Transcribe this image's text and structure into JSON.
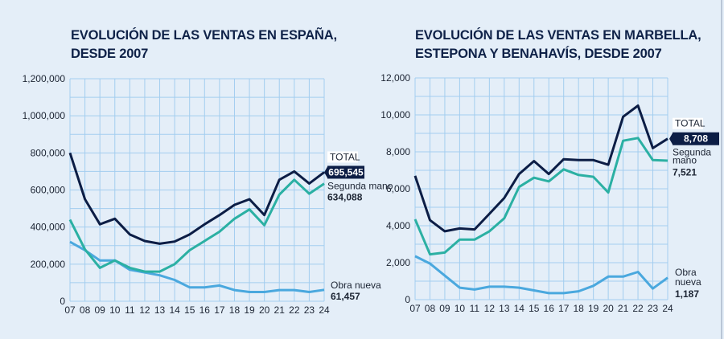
{
  "colors": {
    "total": "#0c1d45",
    "segunda": "#2bb0a3",
    "obra": "#4aa8de",
    "grid": "#a3cdef"
  },
  "chart_data": [
    {
      "type": "line",
      "title": "EVOLUCIÓN DE LAS VENTAS EN ESPAÑA, DESDE 2007",
      "title_lines": [
        "EVOLUCIÓN DE LAS VENTAS EN ESPAÑA,",
        "DESDE 2007"
      ],
      "categories": [
        "07",
        "08",
        "09",
        "10",
        "11",
        "12",
        "13",
        "14",
        "15",
        "16",
        "17",
        "18",
        "19",
        "20",
        "21",
        "22",
        "23",
        "24"
      ],
      "ylim": [
        0,
        1200000
      ],
      "yticks": [
        "0",
        "200,000",
        "400,000",
        "600,000",
        "800,000",
        "1,000,000",
        "1,200,000"
      ],
      "grid": true,
      "series": [
        {
          "name": "TOTAL",
          "values": [
            800000,
            550000,
            415000,
            445000,
            360000,
            325000,
            310000,
            322000,
            360000,
            415000,
            465000,
            520000,
            550000,
            465000,
            655000,
            700000,
            635000,
            695545
          ],
          "end_label": "695,545"
        },
        {
          "name": "Segunda mano",
          "values": [
            440000,
            280000,
            180000,
            220000,
            180000,
            160000,
            160000,
            200000,
            275000,
            325000,
            375000,
            445000,
            495000,
            410000,
            575000,
            655000,
            580000,
            634088
          ],
          "end_label": "634,088"
        },
        {
          "name": "Obra nueva",
          "values": [
            320000,
            275000,
            220000,
            220000,
            170000,
            155000,
            140000,
            115000,
            75000,
            75000,
            85000,
            60000,
            50000,
            50000,
            60000,
            60000,
            50000,
            61457
          ],
          "end_label": "61,457"
        }
      ]
    },
    {
      "type": "line",
      "title": "EVOLUCIÓN DE LAS VENTAS EN MARBELLA, ESTEPONA Y BENAHAVÍS, DESDE 2007",
      "title_lines": [
        "EVOLUCIÓN DE LAS VENTAS EN MARBELLA,",
        "ESTEPONA Y BENAHAVÍS, DESDE 2007"
      ],
      "categories": [
        "07",
        "08",
        "09",
        "10",
        "11",
        "12",
        "13",
        "14",
        "15",
        "16",
        "17",
        "18",
        "19",
        "20",
        "21",
        "22",
        "23",
        "24"
      ],
      "ylim": [
        0,
        12000
      ],
      "yticks": [
        "0",
        "2,000",
        "4,000",
        "6,000",
        "8,000",
        "10,000",
        "12,000"
      ],
      "grid": true,
      "series": [
        {
          "name": "TOTAL",
          "values": [
            6700,
            4300,
            3700,
            3850,
            3800,
            4650,
            5500,
            6800,
            7500,
            6800,
            7600,
            7550,
            7550,
            7300,
            9900,
            10500,
            8200,
            8708
          ],
          "end_label": "8,708"
        },
        {
          "name": "Segunda mano",
          "values": [
            4350,
            2450,
            2550,
            3250,
            3250,
            3700,
            4400,
            6100,
            6600,
            6400,
            7050,
            6750,
            6650,
            5800,
            8600,
            8750,
            7550,
            7521
          ],
          "end_label": "7,521"
        },
        {
          "name": "Obra nueva",
          "values": [
            2350,
            1950,
            1300,
            650,
            550,
            700,
            700,
            650,
            500,
            350,
            350,
            450,
            750,
            1250,
            1250,
            1500,
            600,
            1187
          ],
          "end_label": "1,187"
        }
      ]
    }
  ]
}
